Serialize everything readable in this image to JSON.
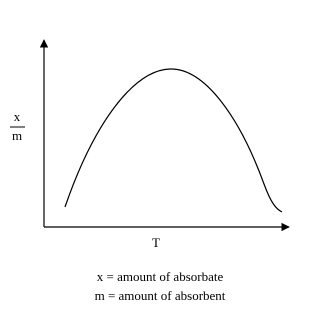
{
  "axes": {
    "y_label": {
      "numerator": "x",
      "denominator": "m"
    },
    "x_label": "T"
  },
  "legend": [
    "x = amount of absorbate",
    "m = amount of absorbent"
  ]
}
